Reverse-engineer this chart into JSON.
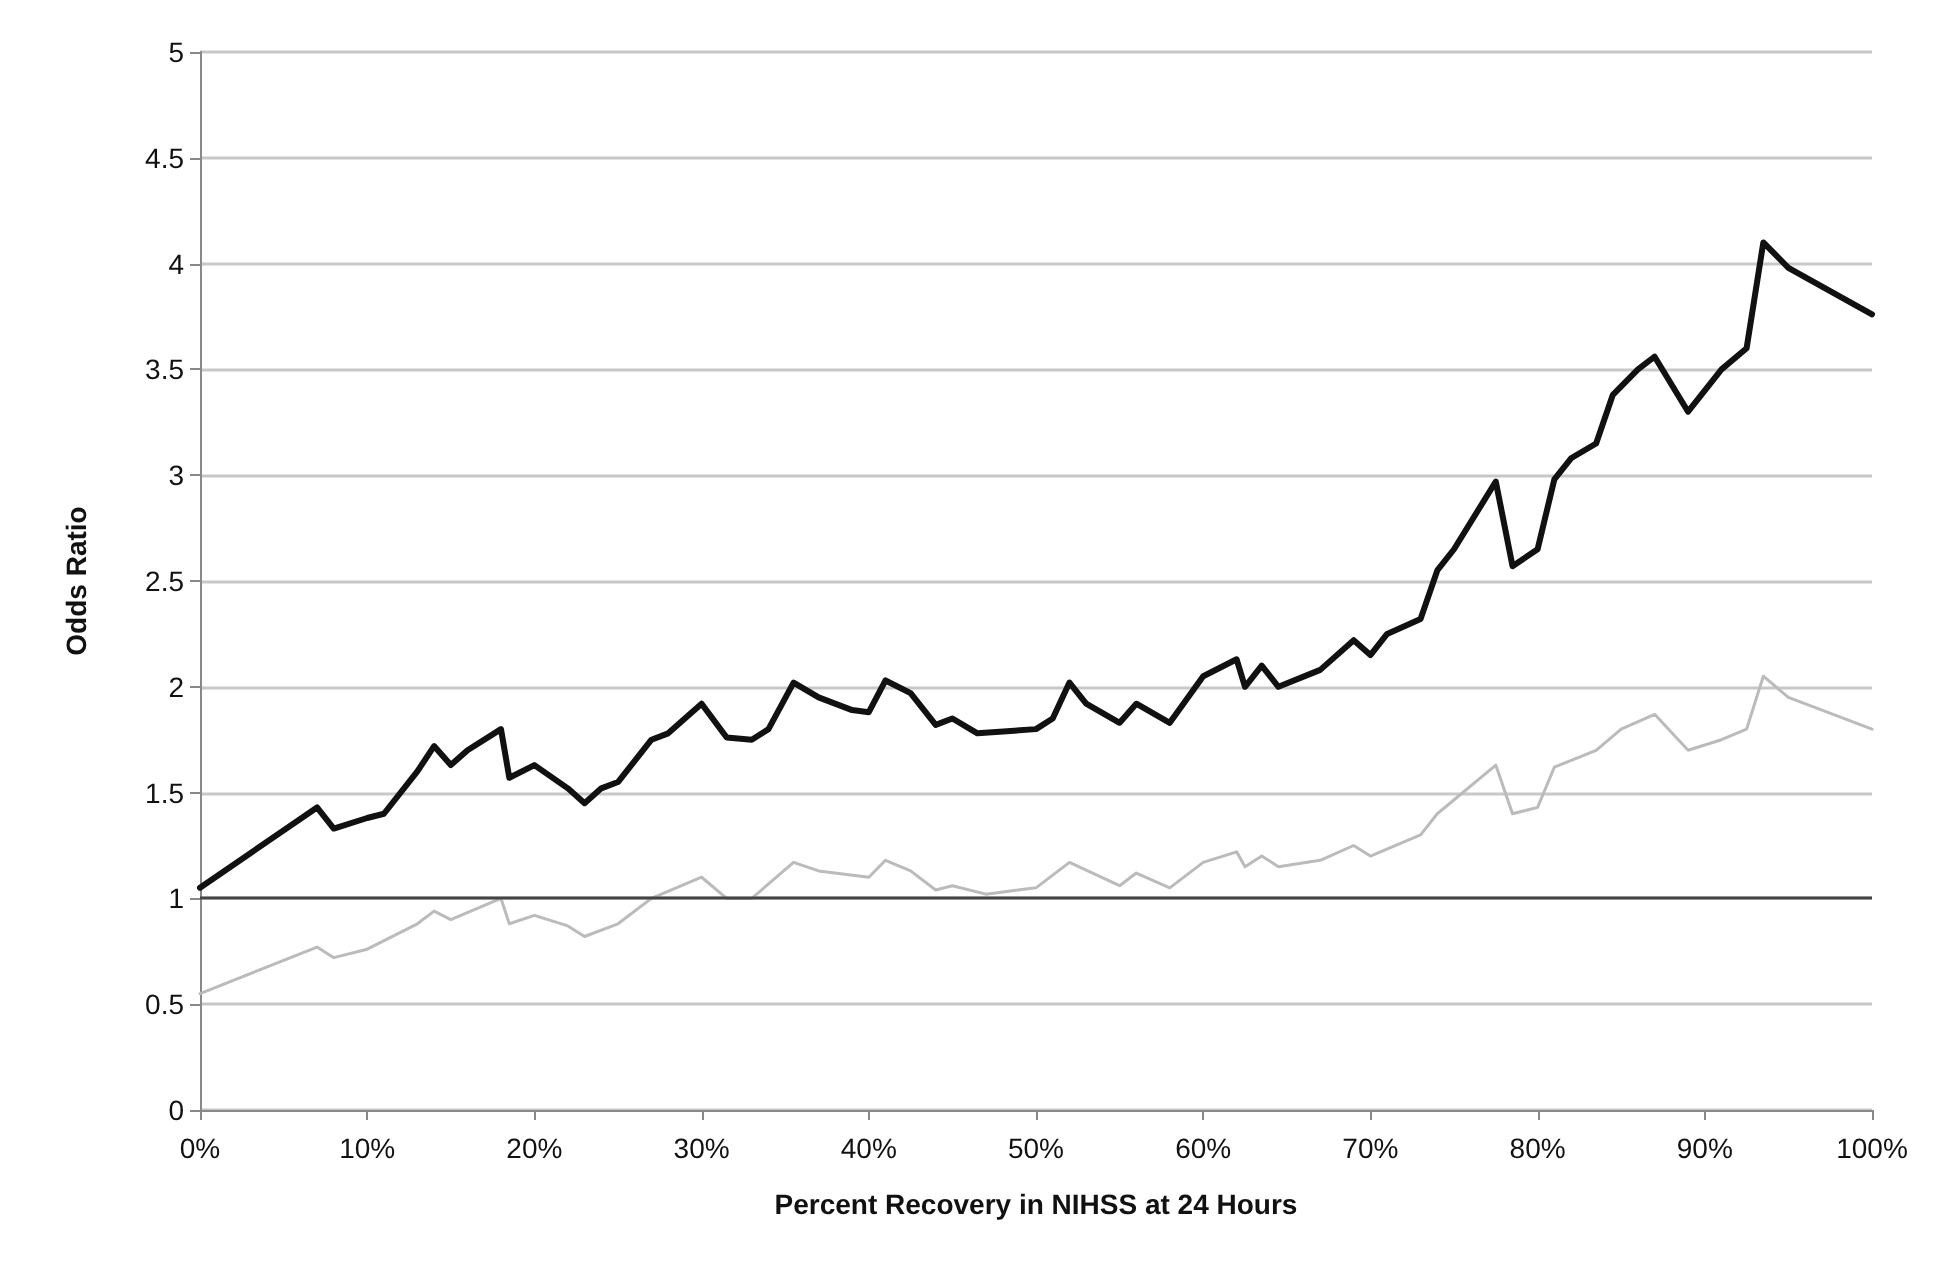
{
  "chart_data": {
    "type": "line",
    "xlabel": "Percent Recovery in NIHSS at 24 Hours",
    "ylabel": "Odds Ratio",
    "xlim": [
      0,
      100
    ],
    "xticks": [
      {
        "value": 0,
        "label": "0%"
      },
      {
        "value": 10,
        "label": "10%"
      },
      {
        "value": 20,
        "label": "20%"
      },
      {
        "value": 30,
        "label": "30%"
      },
      {
        "value": 40,
        "label": "40%"
      },
      {
        "value": 50,
        "label": "50%"
      },
      {
        "value": 60,
        "label": "60%"
      },
      {
        "value": 70,
        "label": "70%"
      },
      {
        "value": 80,
        "label": "80%"
      },
      {
        "value": 90,
        "label": "90%"
      },
      {
        "value": 100,
        "label": "100%"
      }
    ],
    "ylim": [
      0,
      5
    ],
    "yticks": [
      0,
      0.5,
      1,
      1.5,
      2,
      2.5,
      3,
      3.5,
      4,
      4.5,
      5
    ],
    "grid": "y",
    "marker": "none",
    "line_style": "solid",
    "ref_lines": [
      {
        "axis": "y",
        "value": 1,
        "color": "#444444"
      }
    ],
    "series": [
      {
        "color": "#111111",
        "x": [
          0,
          7,
          8,
          10,
          11,
          13,
          14,
          15,
          16,
          18,
          18.5,
          20,
          22,
          23,
          24,
          25,
          27,
          28,
          30,
          31.5,
          33,
          34,
          35.5,
          37,
          39,
          40,
          41,
          42.5,
          44,
          45,
          46.5,
          50,
          51,
          52,
          53,
          55,
          56,
          58,
          60,
          62,
          62.5,
          63.5,
          64.5,
          67,
          69,
          70,
          71,
          73,
          74,
          75,
          77.5,
          78.5,
          80,
          81,
          82,
          83.5,
          84.5,
          86,
          87,
          89,
          91,
          92.5,
          93.5,
          95,
          100
        ],
        "values": [
          1.05,
          1.43,
          1.33,
          1.38,
          1.4,
          1.6,
          1.72,
          1.63,
          1.7,
          1.8,
          1.57,
          1.63,
          1.52,
          1.45,
          1.52,
          1.55,
          1.75,
          1.78,
          1.92,
          1.76,
          1.75,
          1.8,
          2.02,
          1.95,
          1.89,
          1.88,
          2.03,
          1.97,
          1.82,
          1.85,
          1.78,
          1.8,
          1.85,
          2.02,
          1.92,
          1.83,
          1.92,
          1.83,
          2.05,
          2.13,
          2.0,
          2.1,
          2.0,
          2.08,
          2.22,
          2.15,
          2.25,
          2.32,
          2.55,
          2.65,
          2.97,
          2.57,
          2.65,
          2.98,
          3.08,
          3.15,
          3.38,
          3.5,
          3.56,
          3.3,
          3.5,
          3.6,
          4.1,
          3.98,
          3.76
        ]
      },
      {
        "color": "#bbbbbb",
        "x": [
          0,
          7,
          8,
          10,
          13,
          14,
          15,
          18,
          18.5,
          20,
          22,
          23,
          25,
          27,
          30,
          31.5,
          33,
          35.5,
          37,
          40,
          41,
          42.5,
          44,
          45,
          47,
          50,
          52,
          55,
          56,
          58,
          60,
          62,
          62.5,
          63.5,
          64.5,
          67,
          69,
          70,
          73,
          74,
          77.5,
          78.5,
          80,
          81,
          83.5,
          85,
          87,
          89,
          91,
          92.5,
          93.5,
          95,
          100
        ],
        "values": [
          0.55,
          0.77,
          0.72,
          0.76,
          0.88,
          0.94,
          0.9,
          1.0,
          0.88,
          0.92,
          0.87,
          0.82,
          0.88,
          1.0,
          1.1,
          1.0,
          1.0,
          1.17,
          1.13,
          1.1,
          1.18,
          1.13,
          1.04,
          1.06,
          1.02,
          1.05,
          1.17,
          1.06,
          1.12,
          1.05,
          1.17,
          1.22,
          1.15,
          1.2,
          1.15,
          1.18,
          1.25,
          1.2,
          1.3,
          1.4,
          1.63,
          1.4,
          1.43,
          1.62,
          1.7,
          1.8,
          1.87,
          1.7,
          1.75,
          1.8,
          2.05,
          1.95,
          1.8
        ]
      }
    ]
  }
}
